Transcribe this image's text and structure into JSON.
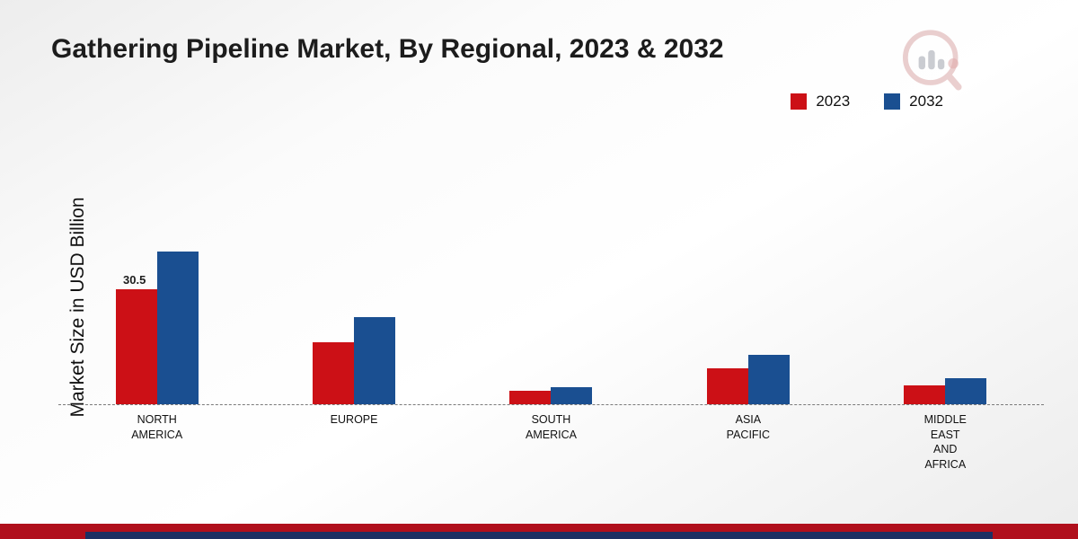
{
  "page": {
    "title": "Gathering Pipeline Market, By Regional, 2023 & 2032",
    "ylabel": "Market Size in USD Billion"
  },
  "legend": {
    "items": [
      {
        "label": "2023",
        "color": "#cc1016"
      },
      {
        "label": "2032",
        "color": "#1a4f91"
      }
    ]
  },
  "chart_data": {
    "type": "bar",
    "title": "Gathering Pipeline Market, By Regional, 2023 & 2032",
    "xlabel": "",
    "ylabel": "Market Size in USD Billion",
    "ylim": [
      0,
      45
    ],
    "grid": false,
    "baseline_style": "dashed",
    "legend_position": "top-right",
    "categories": [
      "NORTH AMERICA",
      "EUROPE",
      "SOUTH AMERICA",
      "ASIA PACIFIC",
      "MIDDLE EAST AND AFRICA"
    ],
    "category_lines": [
      [
        "NORTH",
        "AMERICA"
      ],
      [
        "EUROPE"
      ],
      [
        "SOUTH",
        "AMERICA"
      ],
      [
        "ASIA",
        "PACIFIC"
      ],
      [
        "MIDDLE",
        "EAST",
        "AND",
        "AFRICA"
      ]
    ],
    "series": [
      {
        "name": "2023",
        "color": "#cc1016",
        "values": [
          30.5,
          16.5,
          3.5,
          9.5,
          5
        ]
      },
      {
        "name": "2032",
        "color": "#1a4f91",
        "values": [
          40.5,
          23,
          4.5,
          13,
          7
        ]
      }
    ],
    "annotations": [
      {
        "category": "NORTH AMERICA",
        "series": "2023",
        "text": "30.5"
      }
    ]
  },
  "branding": {
    "logo": "market-research-future-watermark"
  }
}
